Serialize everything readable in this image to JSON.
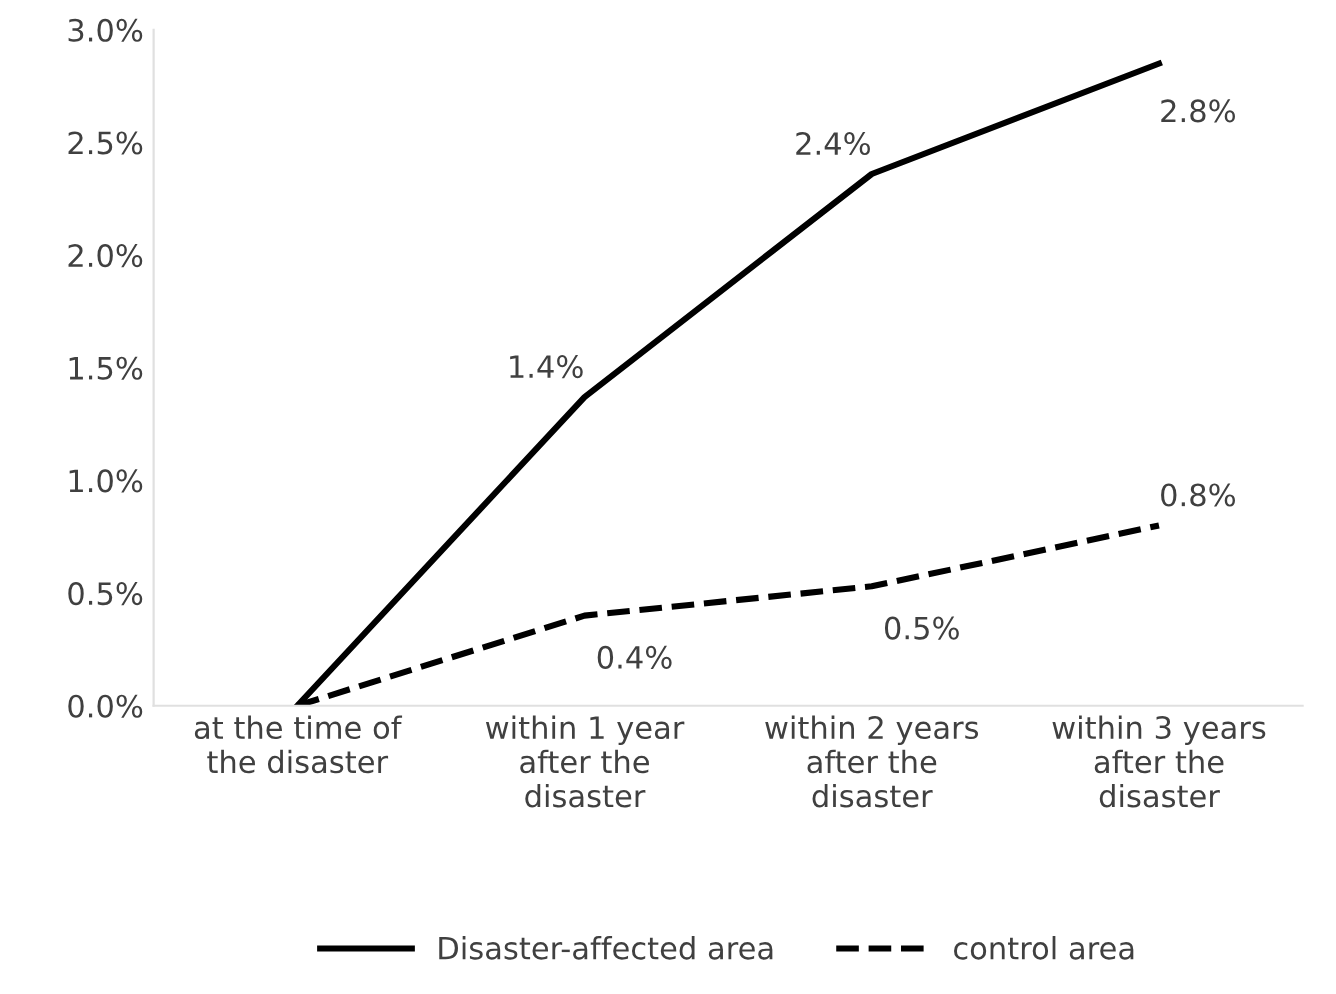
{
  "chart_data": {
    "type": "line",
    "categories": [
      "at the time of\nthe disaster",
      "within 1 year\nafter the\ndisaster",
      "within 2 years\nafter the\ndisaster",
      "within 3 years\nafter the\ndisaster"
    ],
    "series": [
      {
        "name": "Disaster-affected area",
        "color": "#000000",
        "line_style": "solid",
        "values": [
          0,
          1.37,
          2.36,
          2.85
        ],
        "value_labels": [
          null,
          "1.4%",
          "2.4%",
          "2.8%"
        ]
      },
      {
        "name": "control area",
        "color": "#000000",
        "line_style": "dashed",
        "values": [
          0,
          0.4,
          0.53,
          0.8
        ],
        "value_labels": [
          null,
          "0.4%",
          "0.5%",
          "0.8%"
        ]
      }
    ],
    "ylim": [
      0,
      3.0
    ],
    "yticks": [
      {
        "value": 0,
        "label": "0.0%"
      },
      {
        "value": 0.5,
        "label": "0.5%"
      },
      {
        "value": 1.0,
        "label": "1.0%"
      },
      {
        "value": 1.5,
        "label": "1.5%"
      },
      {
        "value": 2.0,
        "label": "2.0%"
      },
      {
        "value": 2.5,
        "label": "2.5%"
      },
      {
        "value": 3.0,
        "label": "3.0%"
      }
    ],
    "grid": false,
    "legend": "bottom",
    "marker": "none"
  }
}
